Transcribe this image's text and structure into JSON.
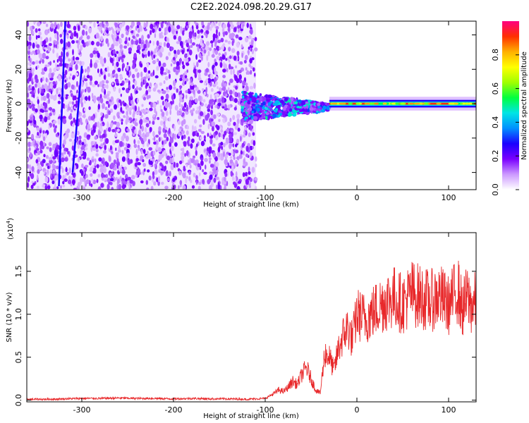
{
  "figure": {
    "title": "C2E2.2024.098.20.29.G17"
  },
  "chart_data": [
    {
      "type": "heatmap",
      "xlabel": "Height of straight line (km)",
      "ylabel": "Frequency (Hz)",
      "xlim": [
        -360,
        130
      ],
      "ylim": [
        -50,
        48
      ],
      "x_ticks": [
        -300,
        -200,
        -100,
        0,
        100
      ],
      "x_tick_labels": [
        "-300",
        "-200",
        "-100",
        "0",
        "100"
      ],
      "y_ticks": [
        -40,
        -20,
        0,
        20,
        40
      ],
      "y_tick_labels": [
        "-40",
        "-20",
        "0",
        "20",
        "40"
      ],
      "colorbar": {
        "label": "Normalized spectral amplitude",
        "range": [
          0.0,
          1.0
        ],
        "ticks": [
          0.0,
          0.2,
          0.4,
          0.6,
          0.8
        ],
        "tick_labels": [
          "0.0",
          "0.2",
          "0.4",
          "0.6",
          "0.8"
        ],
        "colors": [
          "#ffffff",
          "#cc99ff",
          "#7a00ff",
          "#1a00ff",
          "#0090ff",
          "#00e5e5",
          "#00ff40",
          "#a0ff00",
          "#ffff00",
          "#ffb000",
          "#ff3000",
          "#ff0080"
        ]
      },
      "regions": [
        {
          "x_start": -360,
          "x_end": -110,
          "description_free": true,
          "amplitude": 0.15,
          "freq_min": -50,
          "freq_max": 48
        },
        {
          "x_start": -125,
          "x_end": -30,
          "amplitude": 0.45,
          "freq_min": -15,
          "freq_max": 8
        },
        {
          "x_start": -30,
          "x_end": 130,
          "amplitude": 0.9,
          "freq_min": -2,
          "freq_max": 2
        }
      ],
      "streaks": [
        {
          "x_start": -310,
          "x_end": -300,
          "freq_start": -40,
          "freq_end": 22
        },
        {
          "x_start": -325,
          "x_end": -318,
          "freq_start": -48,
          "freq_end": 48
        }
      ]
    },
    {
      "type": "line",
      "xlabel": "Height of straight line (km)",
      "ylabel": "SNR (10 * v/v)",
      "y_multiplier_label": "(x10",
      "y_multiplier_exp": "4",
      "xlim": [
        -360,
        130
      ],
      "ylim": [
        -0.02,
        1.95
      ],
      "x_ticks": [
        -300,
        -200,
        -100,
        0,
        100
      ],
      "x_tick_labels": [
        "-300",
        "-200",
        "-100",
        "0",
        "100"
      ],
      "y_ticks": [
        0.0,
        0.5,
        1.0,
        1.5
      ],
      "y_tick_labels": [
        "0.0",
        "0.5",
        "1.0",
        "1.5"
      ],
      "series": [
        {
          "color": "#e8282a",
          "x": [
            -360,
            -340,
            -320,
            -300,
            -280,
            -260,
            -240,
            -220,
            -200,
            -180,
            -160,
            -140,
            -120,
            -110,
            -100,
            -95,
            -90,
            -85,
            -80,
            -75,
            -70,
            -65,
            -60,
            -55,
            -50,
            -45,
            -40,
            -35,
            -30,
            -25,
            -20,
            -15,
            -10,
            -5,
            0,
            10,
            20,
            30,
            40,
            50,
            60,
            70,
            80,
            90,
            100,
            110,
            115,
            120,
            125,
            130
          ],
          "y": [
            0.01,
            0.01,
            0.015,
            0.02,
            0.02,
            0.025,
            0.02,
            0.02,
            0.015,
            0.02,
            0.015,
            0.015,
            0.01,
            0.015,
            0.02,
            0.05,
            0.08,
            0.12,
            0.1,
            0.15,
            0.22,
            0.18,
            0.3,
            0.38,
            0.25,
            0.12,
            0.08,
            0.55,
            0.5,
            0.35,
            0.6,
            0.75,
            0.85,
            0.7,
            1.0,
            0.95,
            1.05,
            1.15,
            1.2,
            1.12,
            1.25,
            1.2,
            1.15,
            1.22,
            1.1,
            1.3,
            1.05,
            1.2,
            1.1,
            1.15
          ]
        }
      ]
    }
  ]
}
